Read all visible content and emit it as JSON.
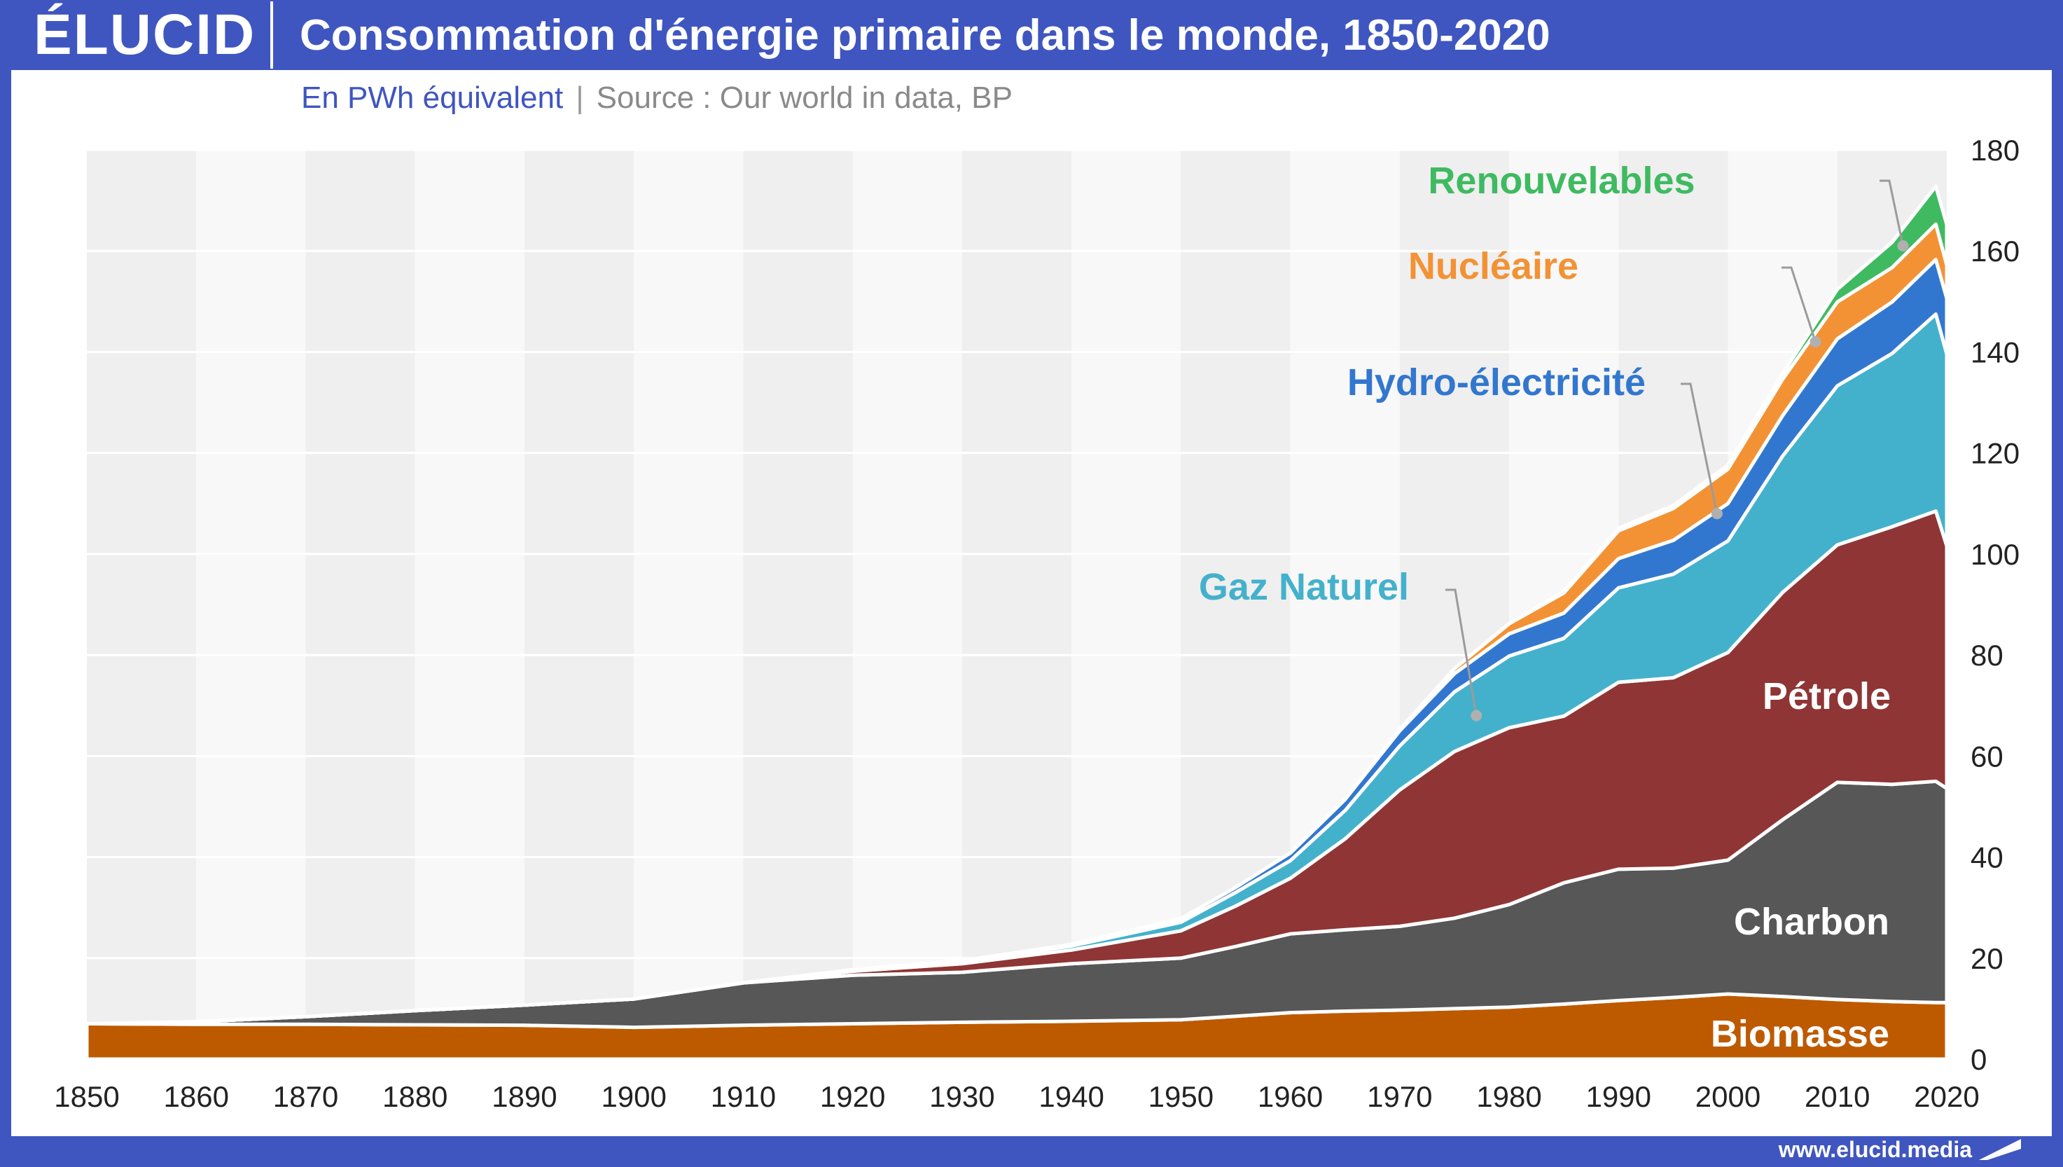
{
  "brand": {
    "logo_text": "ÉLUCID",
    "url": "www.elucid.media"
  },
  "header": {
    "title": "Consommation d'énergie primaire dans le monde, 1850-2020",
    "unit": "En PWh équivalent",
    "separator": "|",
    "source": "Source : Our world in data, BP"
  },
  "colors": {
    "frame": "#3f56c0",
    "biomasse": "#bd5a00",
    "charbon": "#575757",
    "petrole": "#8f3535",
    "gaz": "#44b1cc",
    "hydro": "#3277cf",
    "nucleaire": "#f39234",
    "renouvelables": "#3fba61"
  },
  "chart_data": {
    "type": "area",
    "stacked": true,
    "x_axis": {
      "ticks": [
        1850,
        1860,
        1870,
        1880,
        1890,
        1900,
        1910,
        1920,
        1930,
        1940,
        1950,
        1960,
        1970,
        1980,
        1990,
        2000,
        2010,
        2020
      ],
      "range": [
        1850,
        2020
      ]
    },
    "y_axis": {
      "ticks": [
        0,
        20,
        40,
        60,
        80,
        100,
        120,
        140,
        160,
        180
      ],
      "range": [
        0,
        180
      ],
      "position": "right"
    },
    "grid": "horizontal lines and alternating vertical decade bands",
    "x": [
      1850,
      1860,
      1870,
      1880,
      1890,
      1900,
      1910,
      1920,
      1930,
      1940,
      1950,
      1955,
      1960,
      1965,
      1970,
      1975,
      1980,
      1985,
      1990,
      1995,
      2000,
      2005,
      2010,
      2015,
      2019,
      2020
    ],
    "series": [
      {
        "name": "Biomasse",
        "color_key": "biomasse",
        "label": "Biomasse",
        "values": [
          7.0,
          6.9,
          6.9,
          6.8,
          6.7,
          6.3,
          6.7,
          7.0,
          7.3,
          7.5,
          7.8,
          8.5,
          9.2,
          9.5,
          9.7,
          10.0,
          10.3,
          10.9,
          11.6,
          12.2,
          12.9,
          12.4,
          11.8,
          11.4,
          11.2,
          11.2
        ]
      },
      {
        "name": "Charbon",
        "color_key": "charbon",
        "label": "Charbon",
        "values": [
          0,
          0.5,
          1.5,
          2.8,
          4.0,
          5.6,
          8.4,
          9.6,
          9.9,
          11.4,
          12.2,
          13.8,
          15.6,
          16.1,
          16.6,
          17.9,
          20.3,
          24.0,
          26.0,
          25.6,
          26.5,
          35.0,
          43.0,
          43.0,
          43.8,
          42.4
        ]
      },
      {
        "name": "Pétrole",
        "color_key": "petrole",
        "label": "Pétrole",
        "values": [
          0,
          0,
          0,
          0,
          0,
          0,
          0,
          0.8,
          1.7,
          2.7,
          5.4,
          8.0,
          11.0,
          18.0,
          27.0,
          33.0,
          35.0,
          33.0,
          37.0,
          37.7,
          41.1,
          45.0,
          47.0,
          51.0,
          53.5,
          48.0
        ]
      },
      {
        "name": "Gaz Naturel",
        "color_key": "gaz",
        "label": "Gaz Naturel",
        "values": [
          0,
          0,
          0,
          0,
          0,
          0,
          0,
          0.2,
          0.4,
          0.8,
          1.7,
          2.7,
          3.5,
          5.6,
          8.7,
          11.8,
          14.2,
          15.4,
          18.7,
          20.5,
          22.1,
          27.0,
          31.5,
          34.3,
          39.0,
          38.0
        ]
      },
      {
        "name": "Hydro-électricité",
        "color_key": "hydro",
        "label": "Hydro-électricité",
        "values": [
          0,
          0,
          0,
          0,
          0,
          0,
          0,
          0.1,
          0.2,
          0.3,
          0.7,
          1.0,
          1.5,
          2.2,
          3.0,
          3.6,
          4.4,
          5.0,
          5.8,
          6.7,
          7.4,
          8.0,
          9.3,
          10.2,
          10.8,
          11.0
        ]
      },
      {
        "name": "Nucléaire",
        "color_key": "nucleaire",
        "label": "Nucléaire",
        "values": [
          0,
          0,
          0,
          0,
          0,
          0,
          0,
          0,
          0,
          0,
          0,
          0,
          0,
          0,
          0.3,
          1.0,
          2.0,
          4.0,
          5.5,
          6.3,
          6.8,
          7.2,
          7.3,
          6.8,
          7.0,
          6.6
        ]
      },
      {
        "name": "Renouvelables",
        "color_key": "renouvelables",
        "label": "Renouvelables",
        "values": [
          0,
          0,
          0,
          0,
          0,
          0,
          0,
          0,
          0,
          0,
          0,
          0,
          0,
          0,
          0,
          0,
          0,
          0.3,
          0.5,
          0.6,
          0.8,
          1.1,
          2.5,
          5.0,
          7.5,
          8.0
        ]
      }
    ],
    "inline_labels": [
      {
        "series": "Renouvelables",
        "text": "Renouvelables",
        "placement": "outside",
        "leader_to": [
          2016,
          161
        ]
      },
      {
        "series": "Nucléaire",
        "text": "Nucléaire",
        "placement": "outside",
        "leader_to": [
          2008,
          142
        ]
      },
      {
        "series": "Hydro-électricité",
        "text": "Hydro-électricité",
        "placement": "outside",
        "leader_to": [
          1999,
          108
        ]
      },
      {
        "series": "Gaz Naturel",
        "text": "Gaz Naturel",
        "placement": "outside",
        "leader_to": [
          1977,
          68
        ]
      },
      {
        "series": "Pétrole",
        "text": "Pétrole",
        "placement": "inside"
      },
      {
        "series": "Charbon",
        "text": "Charbon",
        "placement": "inside"
      },
      {
        "series": "Biomasse",
        "text": "Biomasse",
        "placement": "inside"
      }
    ]
  }
}
